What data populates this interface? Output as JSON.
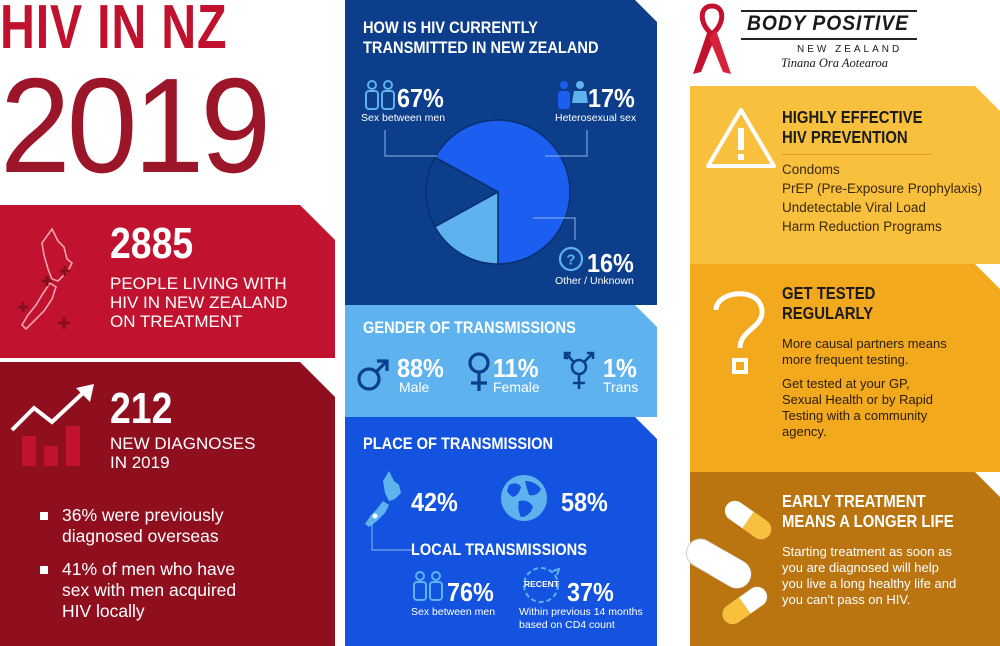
{
  "header": {
    "title": "HIV IN NZ",
    "year": "2019"
  },
  "living": {
    "number": "2885",
    "text_line1": "PEOPLE LIVING WITH",
    "text_line2": "HIV IN NEW ZEALAND",
    "text_line3": "ON TREATMENT"
  },
  "diagnoses": {
    "number": "212",
    "text_line1": "NEW DIAGNOSES",
    "text_line2": "IN 2019",
    "bullets": [
      {
        "line1": "36% were previously",
        "line2": "diagnosed overseas",
        "line3": ""
      },
      {
        "line1": "41% of men who have",
        "line2": "sex with men acquired",
        "line3": "HIV locally"
      }
    ]
  },
  "transmission": {
    "heading_line1": "HOW IS HIV CURRENTLY",
    "heading_line2": "TRANSMITTED IN NEW ZEALAND",
    "slices": [
      {
        "percent": "67%",
        "label": "Sex between men",
        "value": 67,
        "color": "#1b5ef0",
        "icon": "men-couple-icon"
      },
      {
        "percent": "17%",
        "label": "Heterosexual sex",
        "value": 17,
        "color": "#5eb3ee",
        "icon": "man-woman-icon"
      },
      {
        "percent": "16%",
        "label": "Other / Unknown",
        "value": 16,
        "color": "#0c3e8c",
        "icon": "question-circle-icon"
      }
    ]
  },
  "gender": {
    "heading": "GENDER OF TRANSMISSIONS",
    "items": [
      {
        "percent": "88%",
        "label": "Male",
        "icon": "male-symbol-icon"
      },
      {
        "percent": "11%",
        "label": "Female",
        "icon": "female-symbol-icon"
      },
      {
        "percent": "1%",
        "label": "Trans",
        "icon": "transgender-symbol-icon"
      }
    ]
  },
  "place": {
    "heading": "PLACE OF TRANSMISSION",
    "nz_percent": "42%",
    "overseas_percent": "58%",
    "local_heading": "LOCAL TRANSMISSIONS",
    "local_men_percent": "76%",
    "local_men_label": "Sex between men",
    "recent_badge": "RECENT",
    "recent_percent": "37%",
    "recent_label_line1": "Within previous 14 months",
    "recent_label_line2": "based on CD4 count"
  },
  "logo": {
    "name": "BODY POSITIVE",
    "country": "NEW ZEALAND",
    "maori": "Tinana Ora Aotearoa"
  },
  "prevention": {
    "heading_line1": "HIGHLY EFFECTIVE",
    "heading_line2": "HIV PREVENTION",
    "items": [
      "Condoms",
      "PrEP (Pre-Exposure Prophylaxis)",
      "Undetectable Viral Load",
      "Harm Reduction Programs"
    ]
  },
  "testing": {
    "heading_line1": "GET TESTED",
    "heading_line2": "REGULARLY",
    "para1_line1": "More causal partners means",
    "para1_line2": "more frequent testing.",
    "para2_line1": "Get tested at your GP,",
    "para2_line2": "Sexual Health or by Rapid",
    "para2_line3": "Testing with a community",
    "para2_line4": "agency."
  },
  "treatment": {
    "heading_line1": "EARLY TREATMENT",
    "heading_line2": "MEANS A LONGER LIFE",
    "line1": "Starting treatment as soon as",
    "line2": "you are diagnosed will help",
    "line3": "you live a long healthy life and",
    "line4": "you can't pass on HIV."
  },
  "colors": {
    "red": "#c1122f",
    "dark_red": "#8f0f1f",
    "navy": "#0c3e8c",
    "blue": "#1453e0",
    "light_blue": "#5eb3ee",
    "yellow": "#f8c03d",
    "orange": "#f2a91d",
    "brown": "#ba7410"
  }
}
